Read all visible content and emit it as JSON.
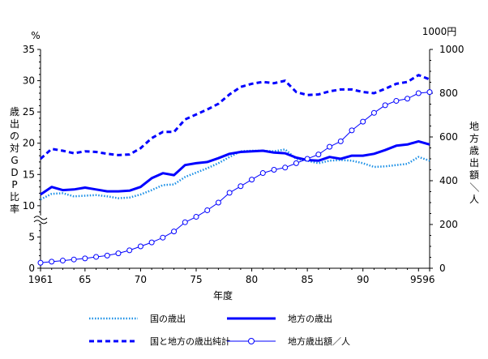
{
  "chart_data": {
    "type": "line",
    "xlabel": "年度",
    "x_tick_labels": [
      "1961",
      "65",
      "70",
      "75",
      "80",
      "85",
      "90",
      "95",
      "96"
    ],
    "left_axis": {
      "unit": "%",
      "label": "歳出の対GDP比率",
      "ylim": [
        0,
        35
      ],
      "ticks": [
        "0",
        "5",
        "10",
        "15",
        "20",
        "25",
        "30",
        "35"
      ],
      "axis_break": true
    },
    "right_axis": {
      "unit": "1000円",
      "label": "地方歳出額／人",
      "ylim": [
        0,
        1000
      ],
      "ticks": [
        "0",
        "200",
        "400",
        "600",
        "800",
        "1000"
      ]
    },
    "legend": {
      "position": "bottom",
      "items": [
        {
          "label": "国の歳出",
          "series": "national"
        },
        {
          "label": "地方の歳出",
          "series": "local"
        },
        {
          "label": "国と地方の歳出純計",
          "series": "combined"
        },
        {
          "label": "地方歳出額／人",
          "series": "per_capita"
        }
      ]
    },
    "x": [
      1961,
      1962,
      1963,
      1964,
      1965,
      1966,
      1967,
      1968,
      1969,
      1970,
      1971,
      1972,
      1973,
      1974,
      1975,
      1976,
      1977,
      1978,
      1979,
      1980,
      1981,
      1982,
      1983,
      1984,
      1985,
      1986,
      1987,
      1988,
      1989,
      1990,
      1991,
      1992,
      1993,
      1994,
      1995,
      1996
    ],
    "series": [
      {
        "key": "national",
        "name": "国の歳出",
        "axis": "left",
        "color": "#1a8fe6",
        "style": "dotted",
        "values": [
          11.0,
          11.9,
          12.0,
          11.5,
          11.6,
          11.7,
          11.5,
          11.2,
          11.3,
          11.8,
          12.5,
          13.3,
          13.4,
          14.6,
          15.3,
          16.0,
          16.8,
          17.8,
          18.7,
          18.8,
          18.8,
          18.7,
          19.0,
          17.5,
          17.2,
          16.8,
          17.2,
          17.3,
          17.2,
          16.8,
          16.2,
          16.3,
          16.5,
          16.7,
          17.8,
          17.2
        ]
      },
      {
        "key": "local",
        "name": "地方の歳出",
        "axis": "left",
        "color": "#0000ff",
        "style": "solid",
        "values": [
          11.8,
          13.0,
          12.5,
          12.6,
          12.9,
          12.6,
          12.3,
          12.3,
          12.4,
          13.0,
          14.4,
          15.2,
          14.9,
          16.5,
          16.8,
          17.0,
          17.6,
          18.3,
          18.6,
          18.7,
          18.8,
          18.5,
          18.4,
          17.7,
          17.3,
          17.2,
          17.8,
          17.5,
          18.0,
          18.0,
          18.3,
          18.9,
          19.6,
          19.8,
          20.3,
          19.8
        ]
      },
      {
        "key": "combined",
        "name": "国と地方の歳出純計",
        "axis": "left",
        "color": "#0000ff",
        "style": "dashed",
        "values": [
          17.5,
          19.1,
          18.8,
          18.4,
          18.7,
          18.6,
          18.3,
          18.1,
          18.2,
          19.2,
          20.8,
          21.8,
          21.8,
          23.8,
          24.6,
          25.4,
          26.3,
          27.8,
          29.0,
          29.5,
          29.8,
          29.6,
          30.0,
          28.2,
          27.7,
          27.8,
          28.3,
          28.6,
          28.6,
          28.2,
          28.0,
          28.7,
          29.5,
          29.8,
          30.9,
          30.2
        ]
      },
      {
        "key": "per_capita",
        "name": "地方歳出額／人",
        "axis": "right",
        "color": "#0000ff",
        "style": "solid-circle-markers",
        "values": [
          25,
          30,
          35,
          40,
          45,
          52,
          58,
          68,
          82,
          100,
          118,
          140,
          168,
          210,
          235,
          265,
          300,
          345,
          375,
          405,
          435,
          450,
          460,
          480,
          500,
          520,
          555,
          580,
          630,
          670,
          710,
          745,
          765,
          775,
          800,
          805
        ]
      }
    ]
  }
}
